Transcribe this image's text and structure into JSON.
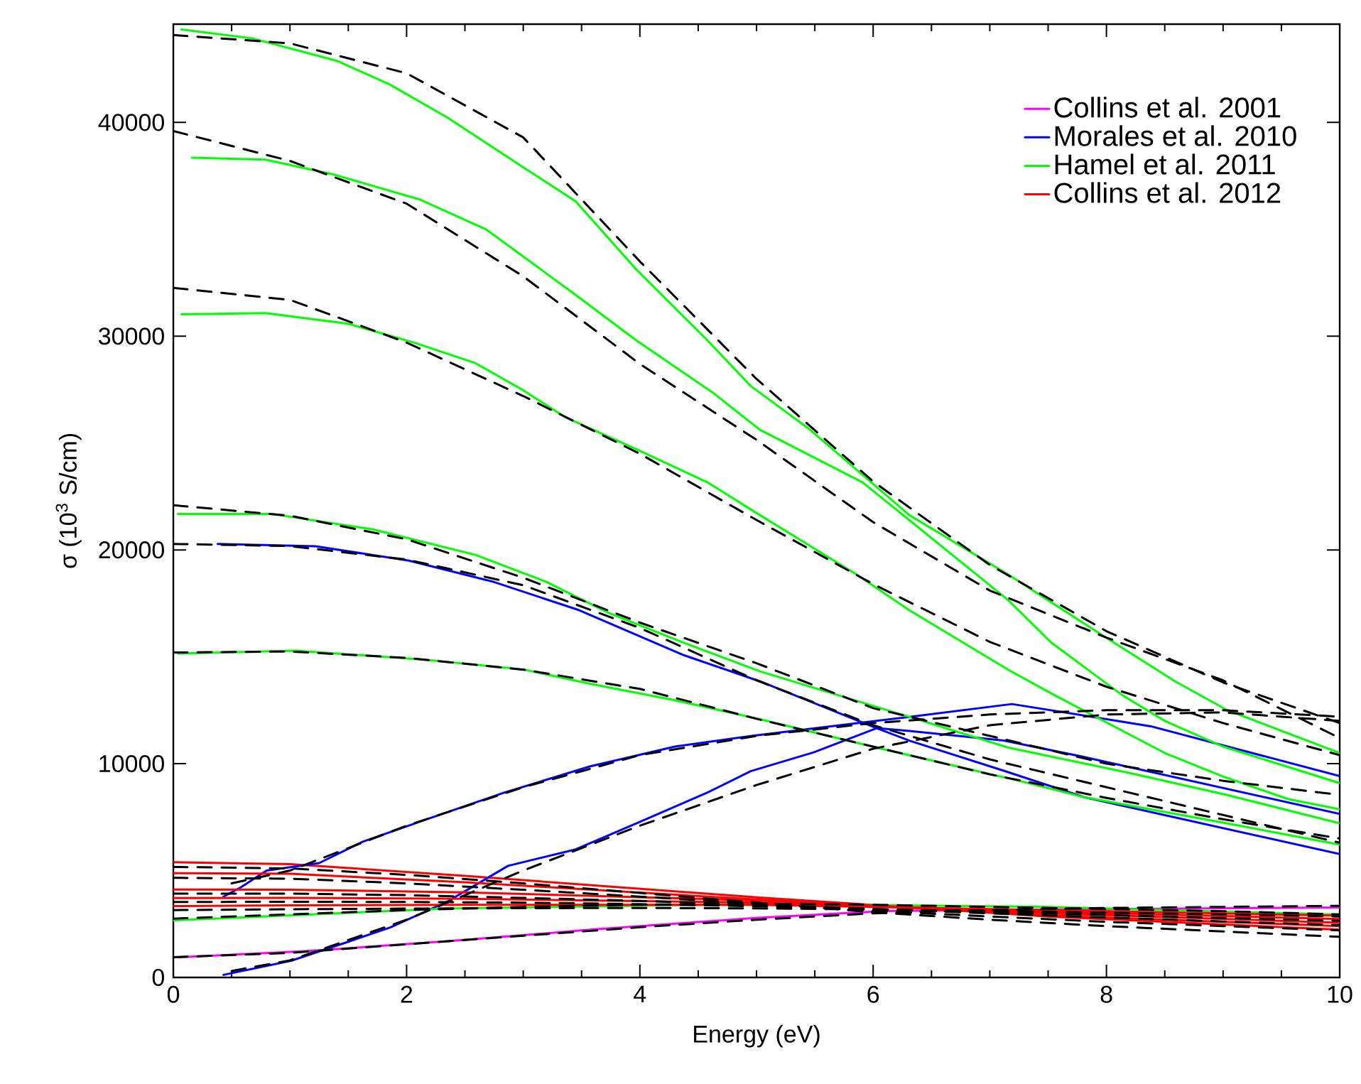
{
  "chart_data": {
    "type": "line",
    "xlabel": "Energy (eV)",
    "ylabel": "σ (10$^{3}$ S/cm)",
    "xlim": [
      0,
      10
    ],
    "ylim": [
      0,
      44600
    ],
    "xticks": [
      0,
      2,
      4,
      6,
      8,
      10
    ],
    "yticks": [
      0,
      10000,
      20000,
      30000,
      40000
    ],
    "legend": "top right",
    "line_style": "solid",
    "series": [
      {
        "name": "Collins et al. 2001",
        "color": "#ff00ff",
        "x": [
          0.04,
          1.13,
          2.35,
          3.57,
          4.99,
          6.1,
          8,
          10
        ],
        "values": [
          940,
          1230,
          1690,
          2230,
          2780,
          3110,
          3200,
          3270
        ]
      },
      {
        "name": "Morales et al. 2010",
        "color": "#0000ff",
        "x": [
          0.38,
          1.22,
          2.02,
          2.75,
          3.48,
          4.38,
          5.03,
          6.03,
          6.31,
          7.12,
          7.81,
          10
        ],
        "values": [
          20280,
          20170,
          19500,
          18500,
          17180,
          15070,
          13850,
          11660,
          11080,
          9670,
          8430,
          5770
        ]
      },
      {
        "name": "Hamel et al. 2011",
        "color": "#00ff00",
        "x": [
          0.07,
          0.68,
          1.41,
          1.86,
          2.35,
          3.0,
          3.45,
          3.97,
          4.58,
          4.95,
          5.46,
          6.31,
          7.16,
          8.01,
          8.59,
          9.03,
          10
        ],
        "values": [
          44350,
          43930,
          42870,
          41760,
          40230,
          37900,
          36310,
          33120,
          29800,
          27670,
          25620,
          21630,
          18840,
          15850,
          13850,
          12520,
          10500
        ]
      },
      {
        "name": "Collins et al. 2012",
        "color": "#ff0000",
        "x": [
          0,
          1,
          2.5,
          5,
          7.5,
          10
        ],
        "values": [
          5390,
          5300,
          4750,
          3750,
          2850,
          2230
        ]
      },
      {
        "color": "#0000ff",
        "x": [
          0.43,
          0.58,
          0.8,
          1.25,
          1.62,
          2.19,
          2.84,
          3.57,
          4.3,
          4.97,
          6.31,
          7.19,
          8.38,
          10
        ],
        "values": [
          3780,
          4220,
          5000,
          5350,
          6340,
          7430,
          8650,
          9870,
          10800,
          11310,
          12190,
          12790,
          11750,
          9420
        ]
      },
      {
        "color": "#0000ff",
        "x": [
          0.43,
          1.01,
          1.5,
          1.86,
          2.35,
          2.87,
          3.45,
          3.97,
          4.58,
          4.95,
          5.49,
          6.03,
          6.31,
          7.12,
          7.81,
          10
        ],
        "values": [
          120,
          780,
          1670,
          2340,
          3550,
          5220,
          5990,
          7210,
          8650,
          9650,
          10530,
          11660,
          11530,
          11080,
          10310,
          7650
        ]
      },
      {
        "color": "#00ff00",
        "x": [
          0.16,
          0.79,
          1.37,
          2.11,
          2.68,
          3.45,
          3.97,
          4.63,
          5.03,
          5.91,
          7.16,
          7.53,
          8.14,
          8.5,
          9.0,
          10
        ],
        "values": [
          38350,
          38260,
          37570,
          36400,
          35000,
          31930,
          29800,
          27340,
          25620,
          23160,
          17640,
          15650,
          13190,
          12000,
          10800,
          9090
        ]
      },
      {
        "color": "#00ff00",
        "x": [
          0.07,
          0.79,
          1.5,
          2.07,
          2.59,
          3.0,
          3.36,
          3.97,
          4.58,
          4.97,
          5.86,
          6.31,
          7.16,
          7.56,
          8.5,
          9.0,
          9.56,
          10
        ],
        "values": [
          31020,
          31080,
          30580,
          29690,
          28740,
          27470,
          26210,
          24710,
          23160,
          21830,
          18840,
          17180,
          14390,
          13190,
          10500,
          9400,
          8340,
          7870
        ]
      },
      {
        "color": "#00ff00",
        "x": [
          0.04,
          0.85,
          1.71,
          2.59,
          3.2,
          3.73,
          4.38,
          5.03,
          6.31,
          7.16,
          8.22,
          9.03,
          10
        ],
        "values": [
          21680,
          21680,
          20960,
          19770,
          18500,
          17060,
          15650,
          14320,
          12190,
          10750,
          9540,
          8540,
          7210
        ]
      },
      {
        "color": "#00ff00",
        "x": [
          0.04,
          1.05,
          2.19,
          3.0,
          3.57,
          4.3,
          5.03,
          6.03,
          7.25,
          7.81,
          9.03,
          10
        ],
        "values": [
          15150,
          15290,
          14850,
          14410,
          13740,
          12970,
          12080,
          10750,
          9200,
          8430,
          7210,
          6210
        ]
      },
      {
        "color": "#00ff00",
        "x": [
          0,
          2.35,
          4.99,
          7.5,
          10
        ],
        "values": [
          2670,
          3220,
          3440,
          3300,
          2940
        ]
      },
      {
        "color": "#ff0000",
        "x": [
          0,
          1,
          2.5,
          5,
          7.5,
          10
        ],
        "values": [
          4880,
          4850,
          4450,
          3650,
          2900,
          2400
        ]
      },
      {
        "color": "#ff0000",
        "x": [
          0,
          1,
          2.5,
          5,
          7.5,
          10
        ],
        "values": [
          4110,
          4100,
          3980,
          3600,
          3000,
          2560
        ]
      },
      {
        "color": "#ff0000",
        "x": [
          0,
          1,
          2.5,
          5,
          7.5,
          10
        ],
        "values": [
          3710,
          3720,
          3680,
          3500,
          3080,
          2730
        ]
      },
      {
        "color": "#ff0000",
        "x": [
          0,
          1,
          2.5,
          5,
          7.5,
          10
        ],
        "values": [
          3340,
          3370,
          3400,
          3400,
          3150,
          2890
        ]
      },
      {
        "color": "#000000",
        "line_style": "dashed",
        "x": [
          0,
          1,
          2,
          3,
          4,
          5,
          6,
          7,
          8,
          9,
          10
        ],
        "values": [
          44090,
          43700,
          42300,
          39300,
          33500,
          28000,
          23200,
          19300,
          16200,
          13800,
          11900
        ]
      },
      {
        "color": "#000000",
        "line_style": "dashed",
        "x": [
          0,
          1,
          2,
          3,
          4,
          5,
          6,
          7,
          8,
          9,
          10
        ],
        "values": [
          39600,
          38200,
          36200,
          32800,
          28700,
          25150,
          21300,
          18100,
          15900,
          13900,
          11200
        ]
      },
      {
        "color": "#000000",
        "line_style": "dashed",
        "x": [
          0,
          1,
          2,
          3,
          4,
          5,
          6,
          7,
          8,
          9,
          10
        ],
        "values": [
          32260,
          31700,
          29700,
          27200,
          24500,
          21400,
          18400,
          15700,
          13600,
          11900,
          10400
        ]
      },
      {
        "color": "#000000",
        "line_style": "dashed",
        "x": [
          0,
          1,
          2,
          3,
          4,
          5,
          6,
          7,
          8,
          9,
          10
        ],
        "values": [
          22090,
          21600,
          20500,
          18700,
          16600,
          14700,
          12600,
          11300,
          10000,
          9200,
          8540
        ]
      },
      {
        "color": "#000000",
        "line_style": "dashed",
        "x": [
          0,
          1,
          2,
          3,
          4,
          5,
          6,
          7,
          8,
          9,
          10
        ],
        "values": [
          20280,
          20180,
          19550,
          18350,
          16350,
          13900,
          11800,
          10200,
          8900,
          7600,
          6300
        ]
      },
      {
        "color": "#000000",
        "line_style": "dashed",
        "x": [
          0,
          1,
          2,
          3,
          4,
          5,
          6,
          7,
          8,
          9,
          10
        ],
        "values": [
          15200,
          15250,
          14950,
          14400,
          13500,
          12100,
          10800,
          9500,
          8400,
          7400,
          6500
        ]
      },
      {
        "color": "#000000",
        "line_style": "dashed",
        "x": [
          0.5,
          1,
          2,
          3,
          4,
          5,
          6,
          7,
          8,
          9,
          10
        ],
        "values": [
          4400,
          5000,
          7100,
          8900,
          10400,
          11300,
          11900,
          12300,
          12500,
          12500,
          12200
        ]
      },
      {
        "color": "#000000",
        "line_style": "dashed",
        "x": [
          0.5,
          1,
          2,
          3,
          4,
          5,
          6,
          7,
          8,
          9,
          10
        ],
        "values": [
          300,
          800,
          2700,
          5000,
          7100,
          9000,
          10700,
          11800,
          12300,
          12400,
          12000
        ]
      },
      {
        "color": "#000000",
        "line_style": "dashed",
        "x": [
          0,
          1,
          2,
          3,
          4,
          5,
          6,
          7,
          8,
          9,
          10
        ],
        "values": [
          950,
          1150,
          1550,
          1950,
          2350,
          2700,
          3000,
          3150,
          3250,
          3300,
          3350
        ]
      },
      {
        "color": "#000000",
        "line_style": "dashed",
        "x": [
          0,
          1,
          2,
          3,
          4,
          5,
          6,
          7,
          8,
          9,
          10
        ],
        "values": [
          2750,
          2950,
          3150,
          3300,
          3400,
          3450,
          3400,
          3300,
          3200,
          3100,
          2950
        ]
      },
      {
        "color": "#000000",
        "line_style": "dashed",
        "x": [
          0,
          1,
          2,
          3,
          4,
          5,
          6,
          7,
          8,
          9,
          10
        ],
        "values": [
          5170,
          5100,
          4800,
          4400,
          3950,
          3500,
          3050,
          2700,
          2400,
          2150,
          1900
        ]
      },
      {
        "color": "#000000",
        "line_style": "dashed",
        "x": [
          0,
          1,
          2,
          3,
          4,
          5,
          6,
          7,
          8,
          9,
          10
        ],
        "values": [
          4660,
          4620,
          4400,
          4100,
          3780,
          3450,
          3120,
          2850,
          2600,
          2400,
          2200
        ]
      },
      {
        "color": "#000000",
        "line_style": "dashed",
        "x": [
          0,
          1,
          2,
          3,
          4,
          5,
          6,
          7,
          8,
          9,
          10
        ],
        "values": [
          3920,
          3920,
          3850,
          3720,
          3580,
          3400,
          3200,
          3000,
          2800,
          2620,
          2450
        ]
      },
      {
        "color": "#000000",
        "line_style": "dashed",
        "x": [
          0,
          1,
          2,
          3,
          4,
          5,
          6,
          7,
          8,
          9,
          10
        ],
        "values": [
          3530,
          3540,
          3530,
          3500,
          3430,
          3330,
          3200,
          3060,
          2920,
          2780,
          2650
        ]
      },
      {
        "color": "#000000",
        "line_style": "dashed",
        "x": [
          0,
          1,
          2,
          3,
          4,
          5,
          6,
          7,
          8,
          9,
          10
        ],
        "values": [
          3150,
          3190,
          3220,
          3240,
          3250,
          3230,
          3180,
          3110,
          3030,
          2950,
          2850
        ]
      }
    ]
  }
}
